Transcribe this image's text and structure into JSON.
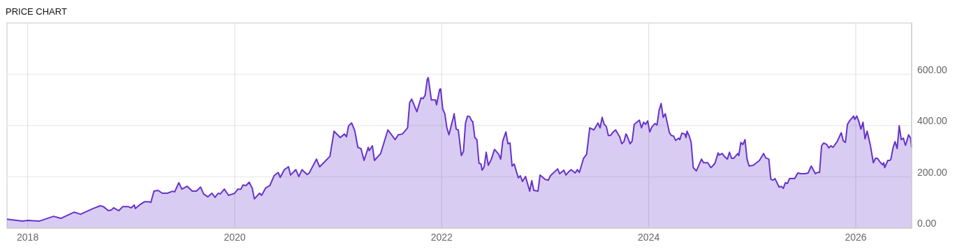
{
  "chart_data": {
    "type": "area",
    "title": "PRICE CHART",
    "x": [
      2017.8,
      2017.95,
      2018.0,
      2018.11,
      2018.17,
      2018.25,
      2018.32,
      2018.45,
      2018.51,
      2018.63,
      2018.7,
      2018.73,
      2018.78,
      2018.81,
      2018.83,
      2018.88,
      2018.92,
      2018.97,
      2019.0,
      2019.03,
      2019.04,
      2019.08,
      2019.13,
      2019.17,
      2019.19,
      2019.22,
      2019.26,
      2019.3,
      2019.35,
      2019.4,
      2019.42,
      2019.46,
      2019.49,
      2019.54,
      2019.59,
      2019.63,
      2019.67,
      2019.7,
      2019.74,
      2019.78,
      2019.81,
      2019.84,
      2019.86,
      2019.9,
      2019.94,
      2019.98,
      2020.0,
      2020.03,
      2020.06,
      2020.08,
      2020.11,
      2020.14,
      2020.17,
      2020.19,
      2020.24,
      2020.26,
      2020.3,
      2020.34,
      2020.38,
      2020.42,
      2020.44,
      2020.48,
      2020.52,
      2020.54,
      2020.59,
      2020.62,
      2020.65,
      2020.7,
      2020.72,
      2020.79,
      2020.82,
      2020.86,
      2020.92,
      2020.96,
      2021.02,
      2021.06,
      2021.08,
      2021.1,
      2021.13,
      2021.16,
      2021.19,
      2021.22,
      2021.25,
      2021.29,
      2021.3,
      2021.33,
      2021.35,
      2021.41,
      2021.48,
      2021.55,
      2021.58,
      2021.62,
      2021.67,
      2021.69,
      2021.71,
      2021.76,
      2021.8,
      2021.82,
      2021.84,
      2021.86,
      2021.87,
      2021.9,
      2021.94,
      2021.95,
      2021.98,
      2021.99,
      2022.01,
      2022.03,
      2022.05,
      2022.07,
      2022.1,
      2022.11,
      2022.12,
      2022.14,
      2022.16,
      2022.19,
      2022.21,
      2022.23,
      2022.25,
      2022.27,
      2022.29,
      2022.3,
      2022.32,
      2022.34,
      2022.36,
      2022.38,
      2022.39,
      2022.41,
      2022.43,
      2022.45,
      2022.48,
      2022.51,
      2022.55,
      2022.57,
      2022.59,
      2022.62,
      2022.64,
      2022.66,
      2022.68,
      2022.7,
      2022.74,
      2022.76,
      2022.78,
      2022.81,
      2022.85,
      2022.87,
      2022.89,
      2022.93,
      2022.95,
      2023.0,
      2023.03,
      2023.05,
      2023.12,
      2023.14,
      2023.18,
      2023.2,
      2023.22,
      2023.25,
      2023.29,
      2023.31,
      2023.33,
      2023.37,
      2023.4,
      2023.43,
      2023.47,
      2023.51,
      2023.53,
      2023.55,
      2023.57,
      2023.59,
      2023.61,
      2023.63,
      2023.65,
      2023.68,
      2023.72,
      2023.74,
      2023.76,
      2023.78,
      2023.79,
      2023.82,
      2023.84,
      2023.86,
      2023.91,
      2023.93,
      2023.95,
      2023.97,
      2023.99,
      2024.01,
      2024.03,
      2024.06,
      2024.08,
      2024.1,
      2024.12,
      2024.14,
      2024.16,
      2024.2,
      2024.22,
      2024.24,
      2024.26,
      2024.29,
      2024.3,
      2024.32,
      2024.35,
      2024.36,
      2024.37,
      2024.39,
      2024.41,
      2024.43,
      2024.46,
      2024.51,
      2024.53,
      2024.57,
      2024.6,
      2024.61,
      2024.64,
      2024.67,
      2024.68,
      2024.71,
      2024.73,
      2024.76,
      2024.78,
      2024.8,
      2024.82,
      2024.86,
      2024.87,
      2024.89,
      2024.91,
      2024.93,
      2024.95,
      2024.97,
      2025.01,
      2025.07,
      2025.11,
      2025.13,
      2025.16,
      2025.18,
      2025.2,
      2025.22,
      2025.26,
      2025.28,
      2025.3,
      2025.32,
      2025.34,
      2025.36,
      2025.41,
      2025.44,
      2025.47,
      2025.51,
      2025.54,
      2025.57,
      2025.61,
      2025.63,
      2025.65,
      2025.67,
      2025.69,
      2025.72,
      2025.74,
      2025.76,
      2025.78,
      2025.82,
      2025.86,
      2025.88,
      2025.9,
      2025.92,
      2025.94,
      2025.98,
      2025.99,
      2026.01,
      2026.03,
      2026.05,
      2026.07,
      2026.09,
      2026.11,
      2026.14,
      2026.17,
      2026.19,
      2026.21,
      2026.24,
      2026.26,
      2026.27,
      2026.28,
      2026.31,
      2026.33,
      2026.34,
      2026.36,
      2026.38,
      2026.4,
      2026.42,
      2026.44,
      2026.46,
      2026.48,
      2026.49,
      2026.51,
      2026.53,
      2026.54
    ],
    "series": [
      {
        "color": "#6633cc",
        "values": [
          35,
          27,
          30,
          27,
          35,
          46,
          38,
          62,
          54,
          76,
          87,
          84,
          68,
          71,
          79,
          68,
          84,
          84,
          79,
          90,
          76,
          90,
          103,
          103,
          100,
          144,
          147,
          136,
          136,
          144,
          141,
          177,
          152,
          163,
          144,
          144,
          160,
          133,
          122,
          136,
          120,
          136,
          133,
          152,
          128,
          133,
          136,
          152,
          152,
          168,
          166,
          179,
          155,
          114,
          136,
          128,
          157,
          166,
          204,
          217,
          198,
          228,
          239,
          207,
          228,
          201,
          228,
          209,
          215,
          269,
          239,
          255,
          280,
          378,
          353,
          367,
          356,
          399,
          410,
          380,
          315,
          310,
          264,
          315,
          302,
          321,
          264,
          291,
          383,
          345,
          364,
          367,
          391,
          489,
          503,
          454,
          508,
          505,
          519,
          579,
          587,
          500,
          500,
          481,
          541,
          543,
          465,
          446,
          391,
          364,
          413,
          427,
          446,
          386,
          383,
          283,
          299,
          410,
          437,
          435,
          418,
          416,
          353,
          345,
          253,
          250,
          226,
          239,
          296,
          245,
          269,
          307,
          288,
          269,
          340,
          375,
          329,
          332,
          242,
          250,
          196,
          204,
          182,
          201,
          144,
          185,
          147,
          144,
          207,
          190,
          187,
          204,
          231,
          212,
          226,
          207,
          217,
          228,
          215,
          228,
          217,
          272,
          288,
          391,
          383,
          410,
          391,
          432,
          405,
          397,
          361,
          361,
          372,
          383,
          356,
          329,
          337,
          367,
          361,
          329,
          340,
          405,
          421,
          391,
          413,
          405,
          418,
          375,
          394,
          408,
          402,
          459,
          486,
          432,
          446,
          372,
          361,
          359,
          342,
          351,
          345,
          370,
          367,
          353,
          378,
          361,
          334,
          236,
          223,
          269,
          255,
          255,
          236,
          239,
          253,
          293,
          285,
          291,
          280,
          269,
          296,
          272,
          272,
          291,
          283,
          334,
          326,
          345,
          269,
          242,
          245,
          264,
          291,
          274,
          269,
          190,
          187,
          193,
          160,
          163,
          155,
          177,
          174,
          193,
          193,
          215,
          212,
          212,
          215,
          242,
          212,
          217,
          217,
          321,
          332,
          326,
          313,
          321,
          315,
          337,
          372,
          340,
          334,
          405,
          418,
          437,
          424,
          437,
          416,
          386,
          413,
          348,
          378,
          326,
          255,
          272,
          272,
          255,
          247,
          255,
          236,
          264,
          264,
          269,
          313,
          337,
          310,
          399,
          345,
          351,
          323,
          334,
          364,
          351,
          313
        ]
      }
    ],
    "xlim": [
      2017.8,
      2026.54
    ],
    "xticks": [
      2018,
      2020,
      2022,
      2024,
      2026
    ],
    "ylim": [
      0,
      800
    ],
    "yticks": [
      {
        "value": 0,
        "label": "0.00"
      },
      {
        "value": 200,
        "label": "200.00"
      },
      {
        "value": 400,
        "label": "400.00"
      },
      {
        "value": 600,
        "label": "600.00"
      }
    ],
    "grid": true
  }
}
